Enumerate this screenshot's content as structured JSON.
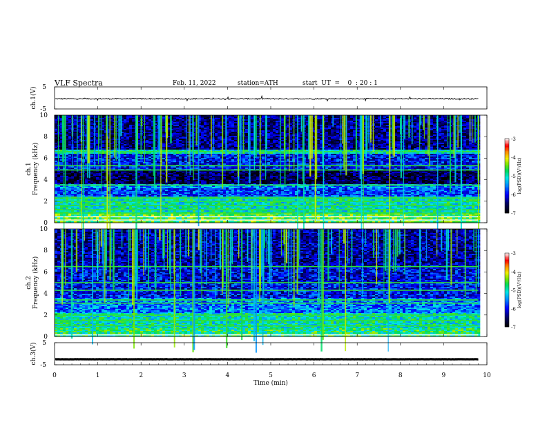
{
  "header": {
    "title": "VLF  Spectra",
    "date": "Feb. 11, 2022",
    "station": "station=ATH",
    "start": "start  UT  =    0  : 20 : 1"
  },
  "chart_data": [
    {
      "type": "line",
      "name": "ch1-waveform",
      "ylabel": "ch.1(V)",
      "ylim": [
        -5,
        5
      ],
      "yticks": [
        "5",
        "-5"
      ],
      "xlim": [
        0,
        10
      ],
      "baseline": -0.4,
      "noise": 0.25
    },
    {
      "type": "heatmap",
      "name": "ch1-spectrogram",
      "ylabel": "ch.1\nFrequency (kHz)",
      "ylabel_lines": [
        "ch.1",
        "Frequency (kHz)"
      ],
      "ylim": [
        0,
        10
      ],
      "yticks": [
        "0",
        "2",
        "4",
        "6",
        "8",
        "10"
      ],
      "xlim": [
        0,
        9.8
      ],
      "colorbar": {
        "label": "log(PSD)(V²/Hz)",
        "range": [
          -7,
          -3
        ],
        "ticks": [
          "-3",
          "-4",
          "-5",
          "-6",
          "-7"
        ]
      },
      "bands": [
        {
          "f0": 0.0,
          "f1": 0.9,
          "level": -4.6
        },
        {
          "f0": 0.9,
          "f1": 2.4,
          "level": -5.0
        },
        {
          "f0": 2.4,
          "f1": 3.2,
          "level": -5.8
        },
        {
          "f0": 3.2,
          "f1": 3.6,
          "level": -5.5
        },
        {
          "f0": 3.6,
          "f1": 4.9,
          "level": -6.6
        },
        {
          "f0": 4.9,
          "f1": 6.4,
          "level": -6.0
        },
        {
          "f0": 6.4,
          "f1": 6.8,
          "level": -5.0
        },
        {
          "f0": 6.8,
          "f1": 10.0,
          "level": -6.4
        }
      ],
      "lines_khz": [
        6.6,
        5.3,
        4.9,
        3.5,
        2.3,
        2.0,
        1.6,
        1.2,
        0.9
      ],
      "gaps_khz": [
        0.25,
        0.55
      ]
    },
    {
      "type": "heatmap",
      "name": "ch2-spectrogram",
      "ylabel": "ch.2\nFrequency (kHz)",
      "ylabel_lines": [
        "ch.2",
        "Frequency (kHz)"
      ],
      "ylim": [
        0,
        10
      ],
      "yticks": [
        "0",
        "2",
        "4",
        "6",
        "8",
        "10"
      ],
      "xlim": [
        0,
        9.8
      ],
      "colorbar": {
        "label": "log(PSD)(V²/Hz)",
        "range": [
          -7,
          -3
        ],
        "ticks": [
          "-3",
          "-4",
          "-5",
          "-6",
          "-7"
        ]
      },
      "bands": [
        {
          "f0": 0.0,
          "f1": 0.8,
          "level": -4.8
        },
        {
          "f0": 0.8,
          "f1": 2.2,
          "level": -5.0
        },
        {
          "f0": 2.2,
          "f1": 3.6,
          "level": -5.6
        },
        {
          "f0": 3.6,
          "f1": 5.0,
          "level": -6.0
        },
        {
          "f0": 5.0,
          "f1": 6.6,
          "level": -6.1
        },
        {
          "f0": 6.6,
          "f1": 10.0,
          "level": -6.3
        }
      ],
      "lines_khz": [
        6.5,
        5.0,
        4.3,
        3.4,
        3.1,
        2.0,
        1.5,
        1.0
      ],
      "gaps_khz": [
        0.15
      ]
    },
    {
      "type": "line",
      "name": "ch3-waveform",
      "ylabel": "ch.3(V)",
      "ylim": [
        -5,
        5
      ],
      "yticks": [
        "5",
        "-5"
      ],
      "xlim": [
        0,
        10
      ],
      "xlabel": "Time  (min)",
      "xticks": [
        "0",
        "1",
        "2",
        "3",
        "4",
        "5",
        "6",
        "7",
        "8",
        "9",
        "10"
      ],
      "baseline": -2.5,
      "noise": 0.05
    }
  ]
}
